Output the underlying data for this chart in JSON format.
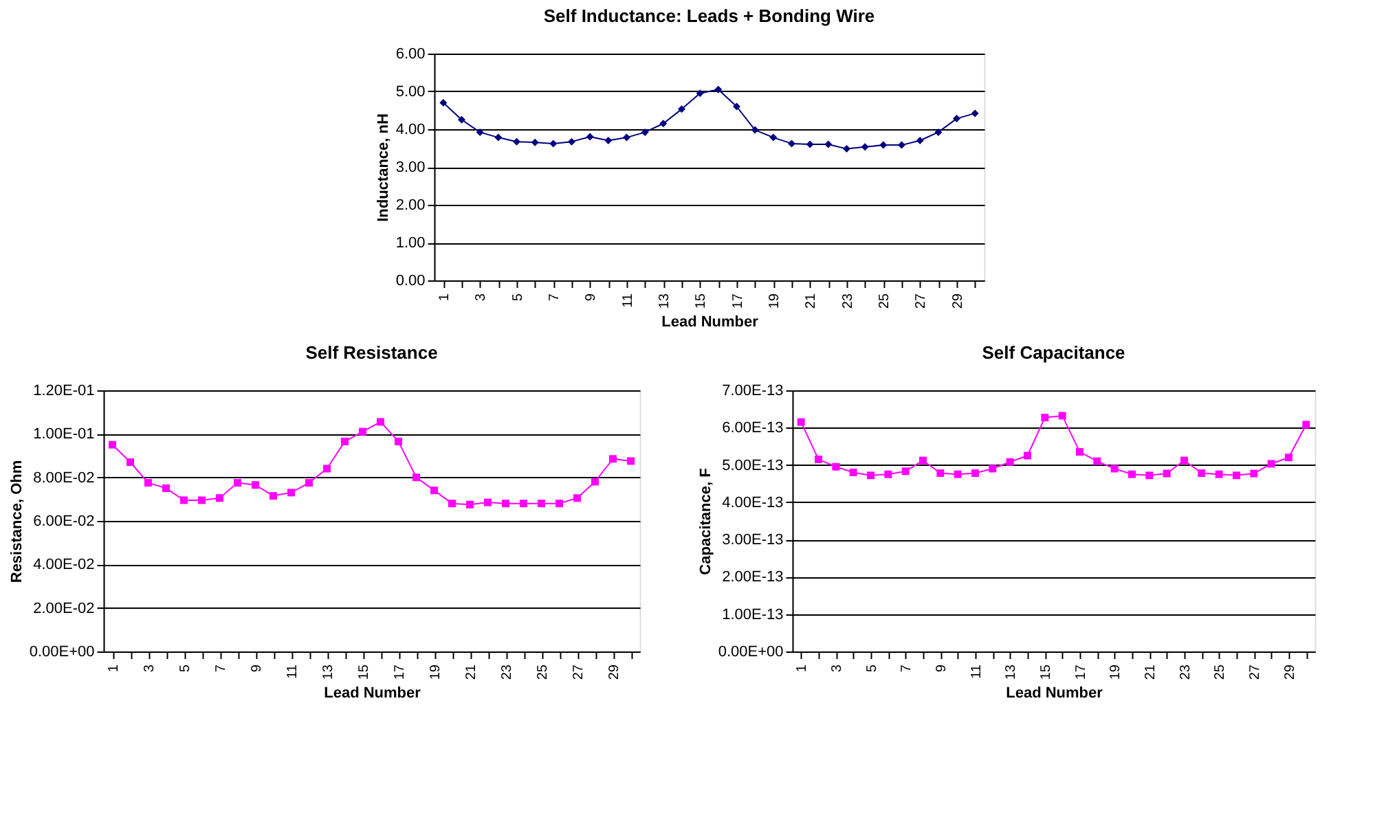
{
  "chart_data": [
    {
      "type": "line",
      "title": "Self Inductance:  Leads + Bonding Wire",
      "xlabel": "Lead Number",
      "ylabel": "Inductance, nH",
      "categories": [
        "1",
        null,
        "3",
        null,
        "5",
        null,
        "7",
        null,
        "9",
        null,
        "11",
        null,
        "13",
        null,
        "15",
        null,
        "17",
        null,
        "19",
        null,
        "21",
        null,
        "23",
        null,
        "25",
        null,
        "27",
        null,
        "29",
        null
      ],
      "series": [
        {
          "color": "#000080",
          "values": [
            4.7,
            4.25,
            3.92,
            3.78,
            3.67,
            3.65,
            3.62,
            3.67,
            3.8,
            3.7,
            3.78,
            3.92,
            4.15,
            4.53,
            4.95,
            5.05,
            4.6,
            3.98,
            3.78,
            3.62,
            3.6,
            3.6,
            3.48,
            3.53,
            3.58,
            3.58,
            3.7,
            3.92,
            4.28,
            4.42
          ]
        }
      ],
      "ylim": [
        0,
        6
      ],
      "yticks": [
        {
          "value": 0,
          "label": "0.00"
        },
        {
          "value": 1,
          "label": "1.00"
        },
        {
          "value": 2,
          "label": "2.00"
        },
        {
          "value": 3,
          "label": "3.00"
        },
        {
          "value": 4,
          "label": "4.00"
        },
        {
          "value": 5,
          "label": "5.00"
        },
        {
          "value": 6,
          "label": "6.00"
        }
      ],
      "grid": "y",
      "legend": false,
      "marker": "diamond",
      "line_style": "solid"
    },
    {
      "type": "line",
      "title": "Self Resistance",
      "xlabel": "Lead Number",
      "ylabel": "Resistance, Ohm",
      "categories": [
        "1",
        null,
        "3",
        null,
        "5",
        null,
        "7",
        null,
        "9",
        null,
        "11",
        null,
        "13",
        null,
        "15",
        null,
        "17",
        null,
        "19",
        null,
        "21",
        null,
        "23",
        null,
        "25",
        null,
        "27",
        null,
        "29",
        null
      ],
      "series": [
        {
          "color": "#ff00ff",
          "values": [
            0.095,
            0.087,
            0.0775,
            0.075,
            0.0695,
            0.0695,
            0.0705,
            0.0775,
            0.0765,
            0.0715,
            0.073,
            0.0775,
            0.084,
            0.0965,
            0.101,
            0.1055,
            0.0965,
            0.08,
            0.074,
            0.068,
            0.0675,
            0.0685,
            0.068,
            0.068,
            0.068,
            0.068,
            0.0705,
            0.078,
            0.0885,
            0.0875
          ]
        }
      ],
      "ylim": [
        0,
        0.12
      ],
      "yticks": [
        {
          "value": 0,
          "label": "0.00E+00"
        },
        {
          "value": 0.02,
          "label": "2.00E-02"
        },
        {
          "value": 0.04,
          "label": "4.00E-02"
        },
        {
          "value": 0.06,
          "label": "6.00E-02"
        },
        {
          "value": 0.08,
          "label": "8.00E-02"
        },
        {
          "value": 0.1,
          "label": "1.00E-01"
        },
        {
          "value": 0.12,
          "label": "1.20E-01"
        }
      ],
      "grid": "y",
      "legend": false,
      "marker": "square",
      "line_style": "solid"
    },
    {
      "type": "line",
      "title": "Self Capacitance",
      "xlabel": "Lead Number",
      "ylabel": "Capacitance, F",
      "categories": [
        "1",
        null,
        "3",
        null,
        "5",
        null,
        "7",
        null,
        "9",
        null,
        "11",
        null,
        "13",
        null,
        "15",
        null,
        "17",
        null,
        "19",
        null,
        "21",
        null,
        "23",
        null,
        "25",
        null,
        "27",
        null,
        "29",
        null
      ],
      "series": [
        {
          "color": "#ff00ff",
          "values": [
            6.15e-13,
            5.15e-13,
            4.95e-13,
            4.8e-13,
            4.72e-13,
            4.75e-13,
            4.83e-13,
            5.12e-13,
            4.78e-13,
            4.75e-13,
            4.78e-13,
            4.9e-13,
            5.08e-13,
            5.25e-13,
            6.27e-13,
            6.32e-13,
            5.35e-13,
            5.1e-13,
            4.9e-13,
            4.75e-13,
            4.72e-13,
            4.77e-13,
            5.12e-13,
            4.78e-13,
            4.75e-13,
            4.72e-13,
            4.77e-13,
            5.03e-13,
            5.2e-13,
            6.08e-13
          ]
        }
      ],
      "ylim": [
        0,
        7e-13
      ],
      "yticks": [
        {
          "value": 0,
          "label": "0.00E+00"
        },
        {
          "value": 1e-13,
          "label": "1.00E-13"
        },
        {
          "value": 2e-13,
          "label": "2.00E-13"
        },
        {
          "value": 3e-13,
          "label": "3.00E-13"
        },
        {
          "value": 4e-13,
          "label": "4.00E-13"
        },
        {
          "value": 5e-13,
          "label": "5.00E-13"
        },
        {
          "value": 6e-13,
          "label": "6.00E-13"
        },
        {
          "value": 7e-13,
          "label": "7.00E-13"
        }
      ],
      "grid": "y",
      "legend": false,
      "marker": "square",
      "line_style": "solid"
    }
  ]
}
